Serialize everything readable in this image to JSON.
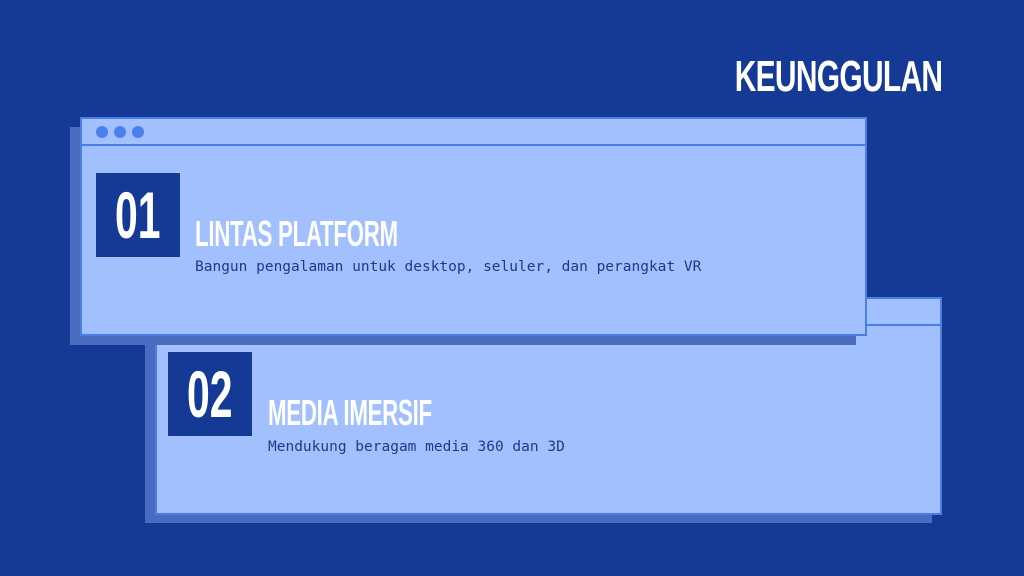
{
  "header": {
    "title": "KEUNGGULAN"
  },
  "items": [
    {
      "number": "01",
      "title": "LINTAS PLATFORM",
      "description": "Bangun pengalaman untuk desktop, seluler, dan perangkat VR"
    },
    {
      "number": "02",
      "title": "MEDIA IMERSIF",
      "description": "Mendukung beragam media 360 dan 3D"
    }
  ],
  "colors": {
    "background": "#143a96",
    "card": "#a2c0fd",
    "accent": "#4a7ff0",
    "shadow": "#4a6cc0"
  }
}
